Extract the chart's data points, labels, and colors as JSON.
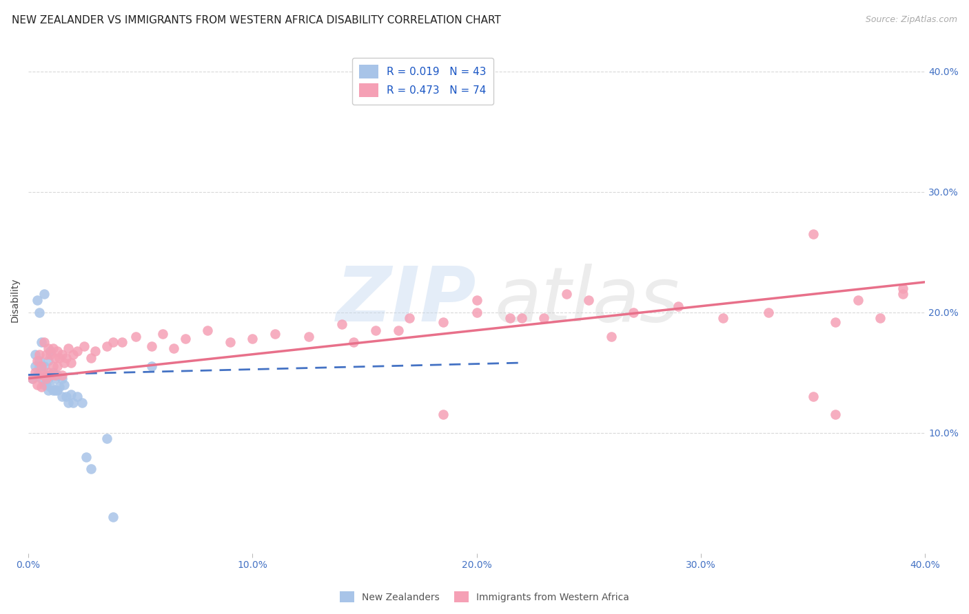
{
  "title": "NEW ZEALANDER VS IMMIGRANTS FROM WESTERN AFRICA DISABILITY CORRELATION CHART",
  "source": "Source: ZipAtlas.com",
  "ylabel": "Disability",
  "legend_nz_label": "New Zealanders",
  "legend_imm_label": "Immigrants from Western Africa",
  "R_nz": 0.019,
  "N_nz": 43,
  "R_imm": 0.473,
  "N_imm": 74,
  "nz_color": "#a8c4e8",
  "imm_color": "#f5a0b5",
  "nz_line_color": "#4472c4",
  "imm_line_color": "#e8708a",
  "background_color": "#ffffff",
  "grid_color": "#d8d8d8",
  "axis_label_color": "#4472c4",
  "xmin": 0.0,
  "xmax": 0.4,
  "ymin": 0.0,
  "ymax": 0.42,
  "nz_scatter_x": [
    0.002,
    0.003,
    0.003,
    0.004,
    0.004,
    0.005,
    0.005,
    0.005,
    0.006,
    0.006,
    0.006,
    0.007,
    0.007,
    0.007,
    0.008,
    0.008,
    0.009,
    0.009,
    0.009,
    0.01,
    0.01,
    0.01,
    0.011,
    0.011,
    0.012,
    0.012,
    0.013,
    0.013,
    0.014,
    0.015,
    0.015,
    0.016,
    0.017,
    0.018,
    0.019,
    0.02,
    0.022,
    0.024,
    0.026,
    0.028,
    0.035,
    0.038,
    0.055
  ],
  "nz_scatter_y": [
    0.145,
    0.155,
    0.165,
    0.148,
    0.21,
    0.155,
    0.16,
    0.2,
    0.145,
    0.155,
    0.175,
    0.14,
    0.155,
    0.215,
    0.14,
    0.148,
    0.135,
    0.145,
    0.16,
    0.138,
    0.148,
    0.168,
    0.135,
    0.15,
    0.135,
    0.145,
    0.135,
    0.148,
    0.138,
    0.13,
    0.145,
    0.14,
    0.13,
    0.125,
    0.132,
    0.125,
    0.13,
    0.125,
    0.08,
    0.07,
    0.095,
    0.03,
    0.155
  ],
  "imm_scatter_x": [
    0.002,
    0.003,
    0.004,
    0.004,
    0.005,
    0.005,
    0.006,
    0.006,
    0.007,
    0.007,
    0.008,
    0.008,
    0.009,
    0.009,
    0.01,
    0.01,
    0.011,
    0.011,
    0.012,
    0.012,
    0.013,
    0.013,
    0.014,
    0.015,
    0.015,
    0.016,
    0.017,
    0.018,
    0.019,
    0.02,
    0.022,
    0.025,
    0.028,
    0.03,
    0.035,
    0.038,
    0.042,
    0.048,
    0.055,
    0.06,
    0.065,
    0.07,
    0.08,
    0.09,
    0.1,
    0.11,
    0.125,
    0.14,
    0.155,
    0.17,
    0.185,
    0.2,
    0.215,
    0.23,
    0.25,
    0.27,
    0.29,
    0.31,
    0.33,
    0.35,
    0.36,
    0.37,
    0.38,
    0.39,
    0.35,
    0.36,
    0.2,
    0.22,
    0.24,
    0.26,
    0.145,
    0.165,
    0.185,
    0.39
  ],
  "imm_scatter_y": [
    0.145,
    0.15,
    0.14,
    0.16,
    0.148,
    0.165,
    0.138,
    0.155,
    0.148,
    0.175,
    0.145,
    0.165,
    0.15,
    0.17,
    0.148,
    0.165,
    0.155,
    0.17,
    0.148,
    0.162,
    0.155,
    0.168,
    0.162,
    0.148,
    0.165,
    0.158,
    0.162,
    0.17,
    0.158,
    0.165,
    0.168,
    0.172,
    0.162,
    0.168,
    0.172,
    0.175,
    0.175,
    0.18,
    0.172,
    0.182,
    0.17,
    0.178,
    0.185,
    0.175,
    0.178,
    0.182,
    0.18,
    0.19,
    0.185,
    0.195,
    0.192,
    0.2,
    0.195,
    0.195,
    0.21,
    0.2,
    0.205,
    0.195,
    0.2,
    0.265,
    0.192,
    0.21,
    0.195,
    0.215,
    0.13,
    0.115,
    0.21,
    0.195,
    0.215,
    0.18,
    0.175,
    0.185,
    0.115,
    0.22
  ],
  "nz_line_x": [
    0.0,
    0.22
  ],
  "nz_line_y": [
    0.148,
    0.158
  ],
  "imm_line_x": [
    0.0,
    0.4
  ],
  "imm_line_y": [
    0.145,
    0.225
  ],
  "title_fontsize": 11,
  "axis_tick_fontsize": 10,
  "ylabel_fontsize": 10,
  "legend_fontsize": 11,
  "source_fontsize": 9
}
